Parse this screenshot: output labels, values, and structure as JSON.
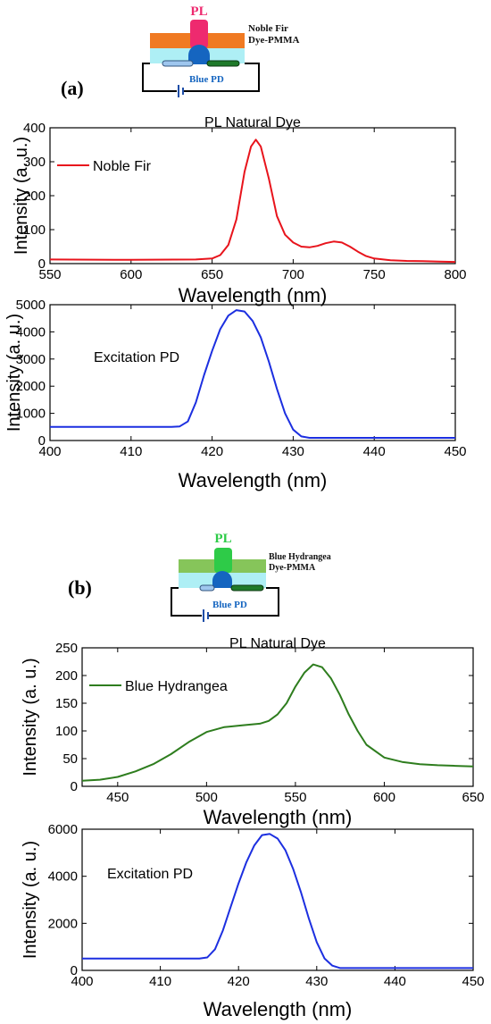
{
  "panels": [
    {
      "panel_label": "(a)",
      "diagram": {
        "pl_label": "PL",
        "film_label_1": "Noble Fir",
        "film_label_2": "Dye-PMMA",
        "pd_label": "Blue PD",
        "film_color": "#f07a22",
        "pl_color": "#ee2a6f"
      }
    },
    {
      "panel_label": "(b)",
      "diagram": {
        "pl_label": "PL",
        "film_label_1": "Blue Hydrangea",
        "film_label_2": "Dye-PMMA",
        "pd_label": "Blue PD",
        "film_color": "#86c55a",
        "pl_color": "#2ecb48"
      }
    }
  ],
  "chart_data": [
    {
      "type": "line",
      "title": "PL Natural Dye",
      "xlabel": "Wavelength (nm)",
      "ylabel": "Intensity  (a. u.)",
      "xlim": [
        550,
        800
      ],
      "ylim": [
        0,
        400
      ],
      "xticks": [
        550,
        600,
        650,
        700,
        750,
        800
      ],
      "yticks": [
        0,
        100,
        200,
        300,
        400
      ],
      "grid": false,
      "legend_position": "top-left",
      "series": [
        {
          "name": "Noble Fir",
          "color": "#e8141c",
          "x": [
            550,
            600,
            640,
            650,
            655,
            660,
            665,
            670,
            674,
            677,
            680,
            685,
            690,
            695,
            700,
            705,
            710,
            715,
            720,
            725,
            730,
            735,
            740,
            745,
            750,
            760,
            770,
            780,
            790,
            800
          ],
          "y": [
            12,
            11,
            12,
            15,
            25,
            55,
            130,
            270,
            345,
            365,
            345,
            250,
            140,
            85,
            62,
            50,
            48,
            52,
            60,
            65,
            62,
            50,
            35,
            22,
            15,
            10,
            8,
            7,
            6,
            5
          ]
        }
      ]
    },
    {
      "type": "line",
      "title": "",
      "xlabel": "Wavelength (nm)",
      "ylabel": "Intensity (a. u.)",
      "annotation": "Excitation PD",
      "xlim": [
        400,
        450
      ],
      "ylim": [
        0,
        5000
      ],
      "xticks": [
        400,
        410,
        420,
        430,
        440,
        450
      ],
      "yticks": [
        0,
        1000,
        2000,
        3000,
        4000,
        5000
      ],
      "grid": false,
      "series": [
        {
          "color": "#1c2fe0",
          "x": [
            400,
            410,
            415,
            416,
            417,
            418,
            419,
            420,
            421,
            422,
            423,
            424,
            425,
            426,
            427,
            428,
            429,
            430,
            431,
            432,
            433,
            440,
            450
          ],
          "y": [
            500,
            500,
            500,
            520,
            700,
            1400,
            2400,
            3300,
            4100,
            4600,
            4800,
            4750,
            4400,
            3800,
            2900,
            1900,
            1000,
            400,
            150,
            100,
            100,
            100,
            100
          ]
        }
      ]
    },
    {
      "type": "line",
      "title": "PL Natural Dye",
      "xlabel": "Wavelength (nm)",
      "ylabel": "Intensity  (a. u.)",
      "xlim": [
        430,
        650
      ],
      "ylim": [
        0,
        250
      ],
      "xticks": [
        450,
        500,
        550,
        600,
        650
      ],
      "yticks": [
        0,
        50,
        100,
        150,
        200,
        250
      ],
      "grid": false,
      "legend_position": "top-left",
      "series": [
        {
          "name": "Blue Hydrangea",
          "color": "#2e7d1e",
          "x": [
            430,
            440,
            450,
            460,
            470,
            480,
            490,
            500,
            510,
            520,
            530,
            535,
            540,
            545,
            550,
            555,
            560,
            565,
            570,
            575,
            580,
            585,
            590,
            600,
            610,
            620,
            630,
            640,
            650
          ],
          "y": [
            10,
            12,
            17,
            27,
            40,
            58,
            80,
            98,
            107,
            110,
            113,
            118,
            130,
            150,
            180,
            205,
            220,
            215,
            195,
            165,
            130,
            100,
            75,
            52,
            44,
            40,
            38,
            37,
            36
          ]
        }
      ]
    },
    {
      "type": "line",
      "title": "",
      "xlabel": "Wavelength (nm)",
      "ylabel": "Intensity (a. u.)",
      "annotation": "Excitation PD",
      "xlim": [
        400,
        450
      ],
      "ylim": [
        0,
        6000
      ],
      "xticks": [
        400,
        410,
        420,
        430,
        440,
        450
      ],
      "yticks": [
        0,
        2000,
        4000,
        6000
      ],
      "grid": false,
      "series": [
        {
          "color": "#1c2fe0",
          "x": [
            400,
            410,
            415,
            416,
            417,
            418,
            419,
            420,
            421,
            422,
            423,
            424,
            425,
            426,
            427,
            428,
            429,
            430,
            431,
            432,
            433,
            440,
            450
          ],
          "y": [
            500,
            500,
            500,
            550,
            900,
            1700,
            2700,
            3700,
            4600,
            5300,
            5750,
            5800,
            5600,
            5100,
            4300,
            3300,
            2200,
            1200,
            500,
            200,
            100,
            100,
            100
          ]
        }
      ]
    }
  ]
}
